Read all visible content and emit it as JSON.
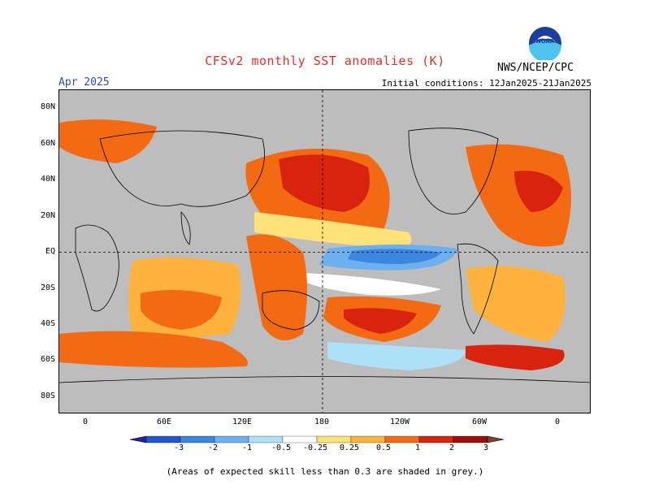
{
  "map": {
    "title": "CFSv2 monthly SST anomalies (K)",
    "month": "Apr 2025",
    "initial_conditions": "Initial conditions: 12Jan2025-21Jan2025",
    "agency": "NWS/NCEP/CPC",
    "logo_text": "NOAA",
    "lat_labels": [
      "80N",
      "60N",
      "40N",
      "20N",
      "EQ",
      "20S",
      "40S",
      "60S",
      "80S"
    ],
    "lon_labels": [
      "0",
      "60E",
      "120E",
      "180",
      "120W",
      "60W",
      "0"
    ],
    "footnote": "(Areas of expected skill less than 0.3 are shaded in grey.)"
  },
  "colorbar": {
    "labels": [
      "-3",
      "-2",
      "-1",
      "-0.5",
      "-0.25",
      "0.25",
      "0.5",
      "1",
      "2",
      "3"
    ],
    "colors": [
      "#2a1f9e",
      "#1f58c8",
      "#3c86e0",
      "#6cb0f0",
      "#aee0f8",
      "#ffffff",
      "#ffe27a",
      "#ffb23c",
      "#f46a12",
      "#d8240e",
      "#9e0c0c",
      "#7a4030"
    ]
  },
  "colors": {
    "land": "#bdbdbd",
    "ocean_neutral": "#ffffff",
    "title": "#e0302e",
    "month": "#2a4fb0"
  }
}
